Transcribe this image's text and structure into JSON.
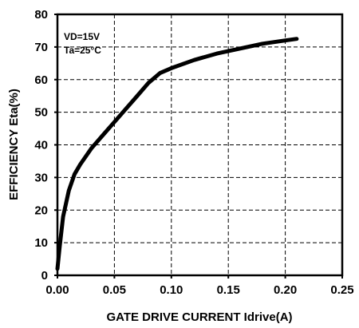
{
  "chart_data": {
    "type": "line",
    "xlabel": "GATE DRIVE CURRENT  Idrive(A)",
    "ylabel": "EFFICIENCY     Eta(%)",
    "xlim": [
      0,
      0.25
    ],
    "ylim": [
      0,
      80
    ],
    "x_ticks": [
      "0.00",
      "0.05",
      "0.10",
      "0.15",
      "0.20",
      "0.25"
    ],
    "y_ticks": [
      "0",
      "10",
      "20",
      "30",
      "40",
      "50",
      "60",
      "70",
      "80"
    ],
    "grid": true,
    "annotations": [
      "VD=15V",
      "Ta=25°C"
    ],
    "series": [
      {
        "x": [
          0.0,
          0.002,
          0.005,
          0.01,
          0.015,
          0.02,
          0.03,
          0.04,
          0.05,
          0.06,
          0.07,
          0.08,
          0.09,
          0.1,
          0.12,
          0.14,
          0.16,
          0.18,
          0.2,
          0.21
        ],
        "values": [
          2,
          9,
          18,
          26,
          31,
          34,
          39,
          43,
          47,
          51,
          55,
          59,
          62,
          63.5,
          66,
          68,
          69.5,
          71,
          72,
          72.5
        ]
      }
    ]
  }
}
